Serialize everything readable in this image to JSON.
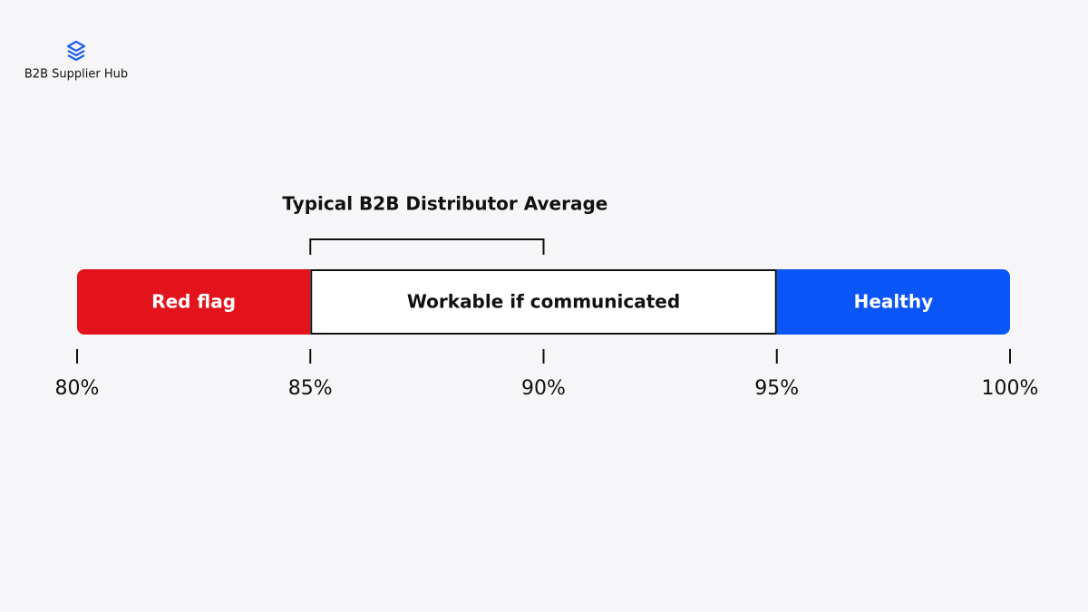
{
  "header": {
    "brand": "B2B Supplier Hub"
  },
  "chart_data": {
    "type": "range",
    "series": [
      {
        "name": "Red flag",
        "color": "#e3131b",
        "values": [
          80,
          85
        ]
      },
      {
        "name": "Workable if communicated",
        "color": "#ffffff",
        "values": [
          85,
          95
        ]
      },
      {
        "name": "Healthy",
        "color": "#0a55f5",
        "values": [
          95,
          100
        ]
      }
    ],
    "annotation": {
      "text": "Typical B2B Distributor Average",
      "values": [
        85,
        90
      ]
    },
    "xlim": [
      80,
      100
    ],
    "xticks": [
      {
        "value": 80,
        "label": "80%"
      },
      {
        "value": 85,
        "label": "85%"
      },
      {
        "value": 90,
        "label": "90%"
      },
      {
        "value": 95,
        "label": "95%"
      },
      {
        "value": 100,
        "label": "100%"
      }
    ]
  }
}
